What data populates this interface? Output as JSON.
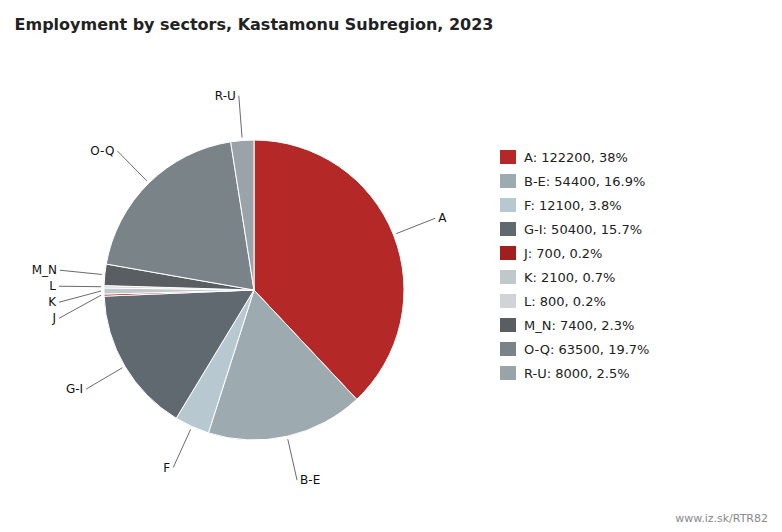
{
  "chart_data": {
    "type": "pie",
    "title": "Employment by sectors, Kastamonu Subregion, 2023",
    "categories": [
      "A",
      "B-E",
      "F",
      "G-I",
      "J",
      "K",
      "L",
      "M_N",
      "O-Q",
      "R-U"
    ],
    "values": [
      122200,
      54400,
      12100,
      50400,
      700,
      2100,
      800,
      7400,
      63500,
      8000
    ],
    "value_labels": [
      "A: 122200, 38%",
      "B-E: 54400, 16.9%",
      "F: 12100, 3.8%",
      "G-I: 50400, 15.7%",
      "J: 700, 0.2%",
      "K: 2100, 0.7%",
      "L: 800, 0.2%",
      "M_N: 7400, 2.3%",
      "O-Q: 63500, 19.7%",
      "R-U: 8000, 2.5%"
    ],
    "colors": [
      "#b52828",
      "#9daab0",
      "#b8c8d0",
      "#606870",
      "#a02020",
      "#c0c8cc",
      "#d0d4d6",
      "#585e62",
      "#7a8488",
      "#9aa4a8"
    ],
    "legend": "right",
    "annotations": [
      {
        "text": "www.iz.sk/RTR82"
      }
    ]
  }
}
